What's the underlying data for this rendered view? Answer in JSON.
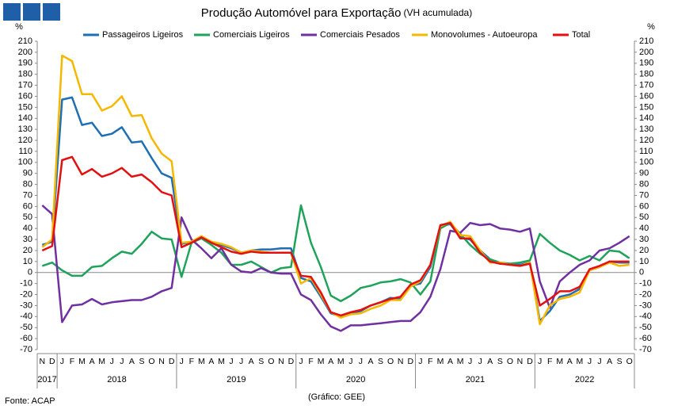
{
  "chart_data": {
    "type": "line",
    "title": "Produção Automóvel para Exportação",
    "subtitle": "(VH acumulada)",
    "y_unit": "%",
    "source": "Fonte: ACAP",
    "credit": "(Gráfico: GEE)",
    "categories": [
      "N",
      "D",
      "J",
      "F",
      "M",
      "A",
      "M",
      "J",
      "J",
      "A",
      "S",
      "O",
      "N",
      "D",
      "J",
      "F",
      "M",
      "A",
      "M",
      "J",
      "J",
      "A",
      "S",
      "O",
      "N",
      "D",
      "J",
      "F",
      "M",
      "A",
      "M",
      "J",
      "J",
      "A",
      "S",
      "O",
      "N",
      "D",
      "J",
      "F",
      "M",
      "A",
      "M",
      "J",
      "J",
      "A",
      "S",
      "O",
      "N",
      "D",
      "J",
      "F",
      "M",
      "A",
      "M",
      "J",
      "J",
      "A",
      "S",
      "O"
    ],
    "year_groups": [
      {
        "label": "2017",
        "count": 2
      },
      {
        "label": "2018",
        "count": 12
      },
      {
        "label": "2019",
        "count": 12
      },
      {
        "label": "2020",
        "count": 12
      },
      {
        "label": "2021",
        "count": 12
      },
      {
        "label": "2022",
        "count": 10
      }
    ],
    "ylim": [
      -70,
      210
    ],
    "yticks": [
      -70,
      -60,
      -50,
      -40,
      -30,
      -20,
      -10,
      0,
      10,
      20,
      30,
      40,
      50,
      60,
      70,
      80,
      90,
      100,
      110,
      120,
      130,
      140,
      150,
      160,
      170,
      180,
      190,
      200,
      210
    ],
    "grid": false,
    "legend": "top",
    "series": [
      {
        "name": "Passageiros Ligeiros",
        "color": "#1f6fb5",
        "values": [
          25,
          28,
          157,
          159,
          134,
          136,
          124,
          126,
          132,
          118,
          119,
          104,
          90,
          86,
          26,
          28,
          32,
          28,
          25,
          22,
          18,
          20,
          21,
          21,
          22,
          22,
          -5,
          -8,
          -22,
          -37,
          -40,
          -37,
          -35,
          -30,
          -27,
          -23,
          -24,
          -12,
          -10,
          5,
          42,
          44,
          32,
          30,
          20,
          12,
          8,
          8,
          7,
          9,
          -44,
          -35,
          -22,
          -20,
          -15,
          2,
          5,
          10,
          9,
          9
        ]
      },
      {
        "name": "Comerciais Ligeiros",
        "color": "#1fa35a",
        "values": [
          6,
          9,
          2,
          -3,
          -3,
          5,
          6,
          13,
          19,
          17,
          26,
          37,
          31,
          30,
          -4,
          27,
          31,
          25,
          18,
          7,
          7,
          10,
          5,
          0,
          4,
          5,
          61,
          27,
          5,
          -21,
          -26,
          -21,
          -14,
          -12,
          -9,
          -8,
          -6,
          -9,
          -20,
          -8,
          40,
          45,
          35,
          25,
          17,
          12,
          9,
          8,
          9,
          11,
          35,
          27,
          20,
          16,
          11,
          15,
          11,
          20,
          19,
          13
        ]
      },
      {
        "name": "Comerciais Pesados",
        "color": "#7030a0",
        "values": [
          61,
          53,
          -45,
          -30,
          -29,
          -24,
          -29,
          -27,
          -26,
          -25,
          -25,
          -22,
          -17,
          -14,
          50,
          30,
          22,
          13,
          22,
          7,
          1,
          0,
          4,
          0,
          -1,
          -1,
          -20,
          -25,
          -38,
          -49,
          -53,
          -48,
          -48,
          -47,
          -46,
          -45,
          -44,
          -44,
          -36,
          -22,
          3,
          38,
          36,
          45,
          43,
          44,
          40,
          39,
          37,
          40,
          -8,
          -32,
          -8,
          0,
          7,
          11,
          20,
          22,
          27,
          33
        ]
      },
      {
        "name": "Monovolumes - Autoeuropa",
        "color": "#f5b800",
        "values": [
          23,
          30,
          197,
          192,
          162,
          162,
          147,
          151,
          160,
          142,
          143,
          122,
          108,
          101,
          27,
          28,
          33,
          28,
          26,
          23,
          18,
          20,
          19,
          18,
          18,
          18,
          -10,
          -5,
          -20,
          -36,
          -41,
          -38,
          -37,
          -33,
          -30,
          -25,
          -25,
          -13,
          -8,
          7,
          42,
          46,
          34,
          33,
          20,
          9,
          9,
          7,
          6,
          9,
          -47,
          -30,
          -24,
          -22,
          -18,
          2,
          5,
          9,
          6,
          7
        ]
      },
      {
        "name": "Total",
        "color": "#e31010",
        "values": [
          20,
          24,
          102,
          105,
          89,
          94,
          87,
          90,
          95,
          87,
          89,
          82,
          73,
          70,
          23,
          27,
          32,
          27,
          23,
          19,
          17,
          19,
          18,
          18,
          18,
          18,
          -3,
          -4,
          -18,
          -36,
          -39,
          -36,
          -34,
          -30,
          -27,
          -24,
          -22,
          -11,
          -7,
          7,
          43,
          45,
          31,
          31,
          18,
          10,
          8,
          7,
          6,
          8,
          -30,
          -24,
          -17,
          -17,
          -13,
          3,
          6,
          10,
          10,
          10
        ]
      }
    ]
  }
}
